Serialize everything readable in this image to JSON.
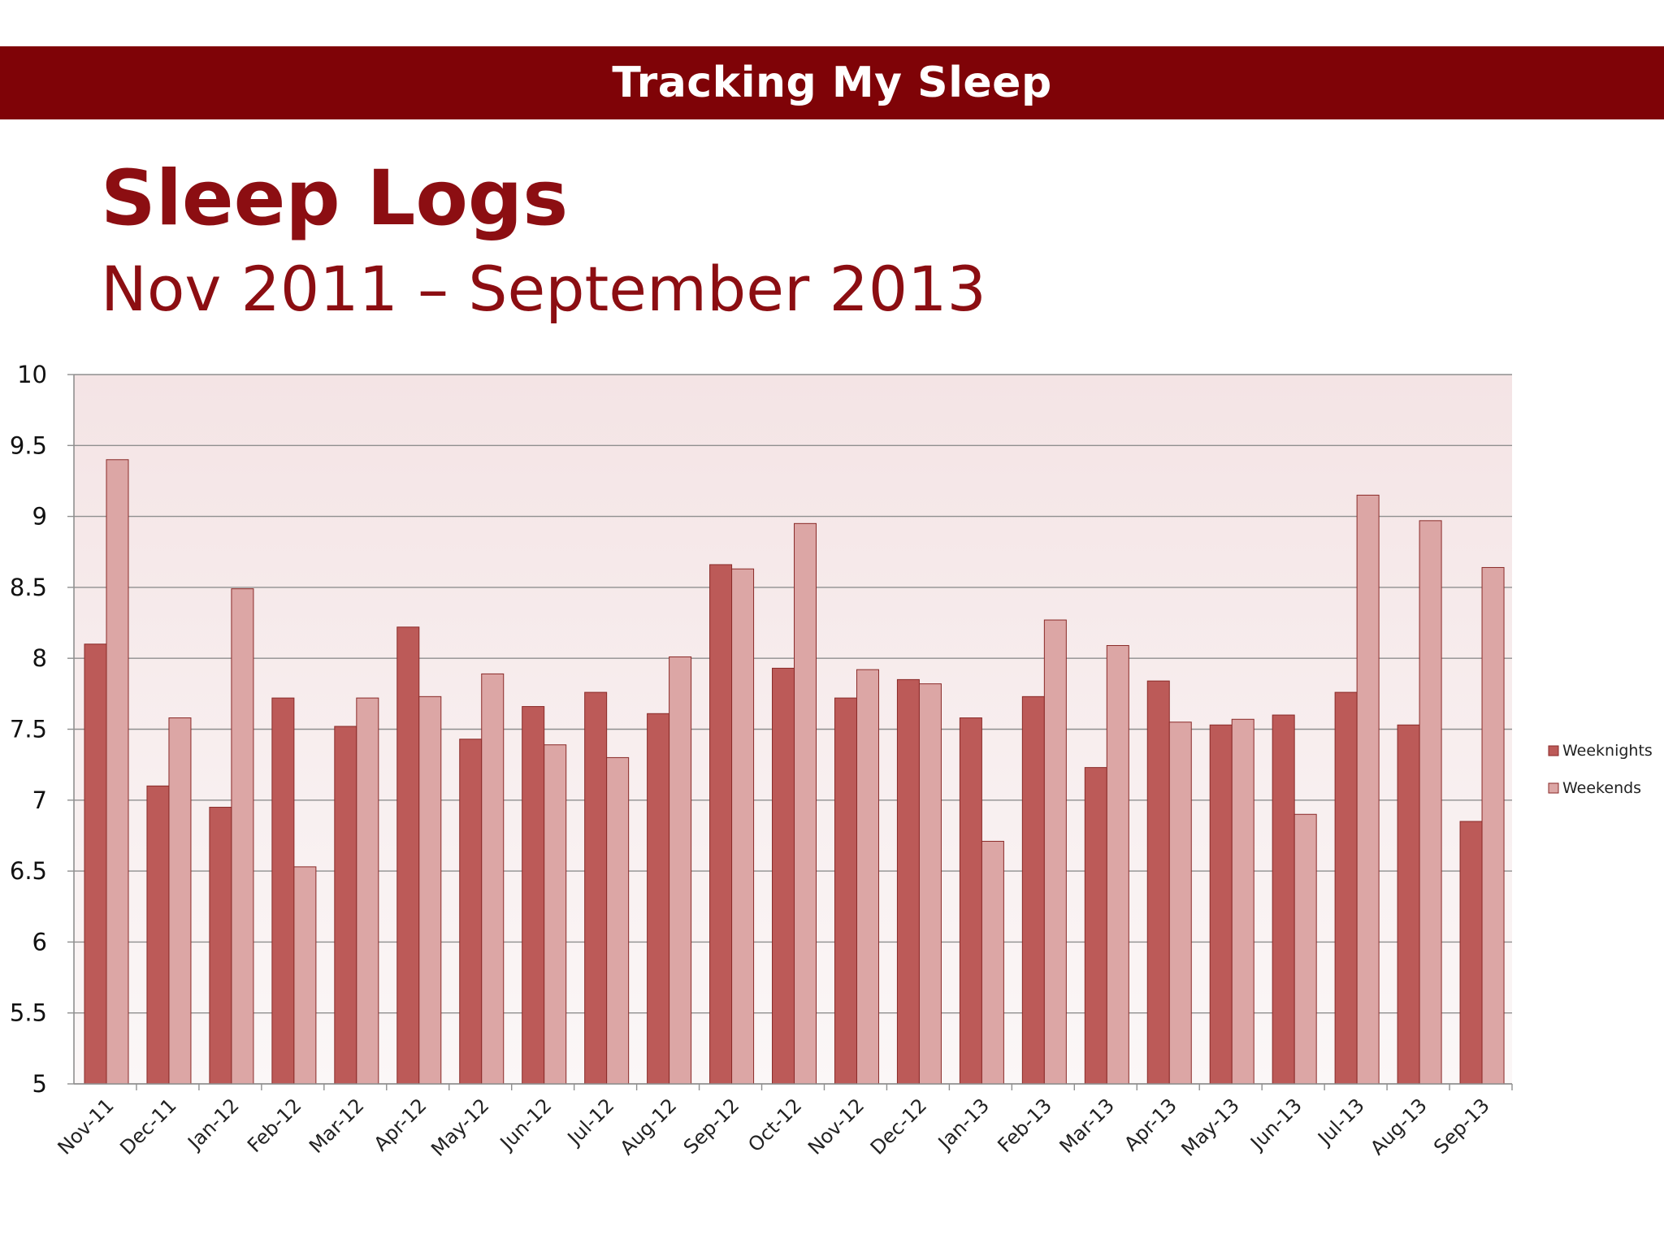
{
  "banner": {
    "title": "Tracking My Sleep"
  },
  "slide": {
    "title": "Sleep Logs",
    "subtitle": "Nov 2011 – September 2013"
  },
  "colors": {
    "banner_bg": "#7f0307",
    "title_text": "#8c0e12",
    "plot_bg": "#f6eced",
    "weeknights": "#bc5a58",
    "weekends": "#dca6a5",
    "bar_outline": "#8a2a28"
  },
  "chart_data": {
    "type": "bar",
    "title": "",
    "xlabel": "",
    "ylabel": "",
    "ylim": [
      5,
      10
    ],
    "yticks": [
      "5",
      "5.5",
      "6",
      "6.5",
      "7",
      "7.5",
      "8",
      "8.5",
      "9",
      "9.5",
      "10"
    ],
    "grid": true,
    "legend_position": "right",
    "categories": [
      "Nov-11",
      "Dec-11",
      "Jan-12",
      "Feb-12",
      "Mar-12",
      "Apr-12",
      "May-12",
      "Jun-12",
      "Jul-12",
      "Aug-12",
      "Sep-12",
      "Oct-12",
      "Nov-12",
      "Dec-12",
      "Jan-13",
      "Feb-13",
      "Mar-13",
      "Apr-13",
      "May-13",
      "Jun-13",
      "Jul-13",
      "Aug-13",
      "Sep-13"
    ],
    "series": [
      {
        "name": "Weeknights",
        "values": [
          8.1,
          7.1,
          6.95,
          7.72,
          7.52,
          8.22,
          7.43,
          7.66,
          7.76,
          7.61,
          8.66,
          7.93,
          7.72,
          7.85,
          7.58,
          7.73,
          7.23,
          7.84,
          7.53,
          7.6,
          7.76,
          7.53,
          6.85
        ]
      },
      {
        "name": "Weekends",
        "values": [
          9.4,
          7.58,
          8.49,
          6.53,
          7.72,
          7.73,
          7.89,
          7.39,
          7.3,
          8.01,
          8.63,
          8.95,
          7.92,
          7.82,
          6.71,
          8.27,
          8.09,
          7.55,
          7.57,
          6.9,
          9.15,
          8.97,
          8.64
        ]
      }
    ]
  }
}
